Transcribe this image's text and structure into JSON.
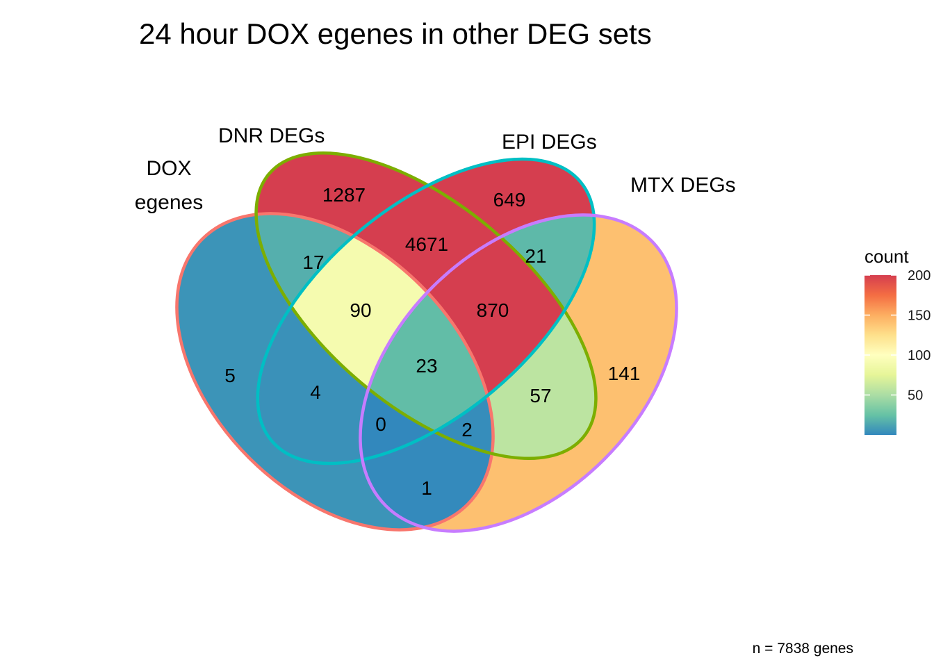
{
  "chart_data": {
    "type": "venn",
    "title": "24 hour DOX egenes in other DEG sets",
    "caption": "n = 7838 genes",
    "sets": [
      {
        "id": "A",
        "label_lines": [
          "DOX",
          "egenes"
        ],
        "color": "#F8766D"
      },
      {
        "id": "B",
        "label_lines": [
          "DNR DEGs"
        ],
        "color": "#7CAE00"
      },
      {
        "id": "C",
        "label_lines": [
          "EPI DEGs"
        ],
        "color": "#00BFC4"
      },
      {
        "id": "D",
        "label_lines": [
          "MTX DEGs"
        ],
        "color": "#C77CFF"
      }
    ],
    "regions": [
      {
        "sets": [
          "A"
        ],
        "count": 5
      },
      {
        "sets": [
          "B"
        ],
        "count": 1287
      },
      {
        "sets": [
          "C"
        ],
        "count": 649
      },
      {
        "sets": [
          "D"
        ],
        "count": 141
      },
      {
        "sets": [
          "A",
          "B"
        ],
        "count": 17
      },
      {
        "sets": [
          "A",
          "C"
        ],
        "count": 4
      },
      {
        "sets": [
          "A",
          "D"
        ],
        "count": 1
      },
      {
        "sets": [
          "B",
          "C"
        ],
        "count": 4671
      },
      {
        "sets": [
          "B",
          "D"
        ],
        "count": 57
      },
      {
        "sets": [
          "C",
          "D"
        ],
        "count": 21
      },
      {
        "sets": [
          "A",
          "B",
          "C"
        ],
        "count": 90
      },
      {
        "sets": [
          "A",
          "B",
          "D"
        ],
        "count": 2
      },
      {
        "sets": [
          "A",
          "C",
          "D"
        ],
        "count": 0
      },
      {
        "sets": [
          "B",
          "C",
          "D"
        ],
        "count": 870
      },
      {
        "sets": [
          "A",
          "B",
          "C",
          "D"
        ],
        "count": 23
      }
    ],
    "fill_scale": {
      "title": "count",
      "palette": "Spectral",
      "range": [
        0,
        200
      ],
      "ticks": [
        50,
        100,
        150,
        200
      ],
      "tick_labels": [
        "50",
        "100",
        "150",
        "200"
      ],
      "colors": [
        "#3288BD",
        "#66C2A5",
        "#ABDDA4",
        "#E6F598",
        "#FFFFBF",
        "#FEE08B",
        "#FDAE61",
        "#F46D43",
        "#D53E4F"
      ]
    },
    "legend_position": "right"
  }
}
